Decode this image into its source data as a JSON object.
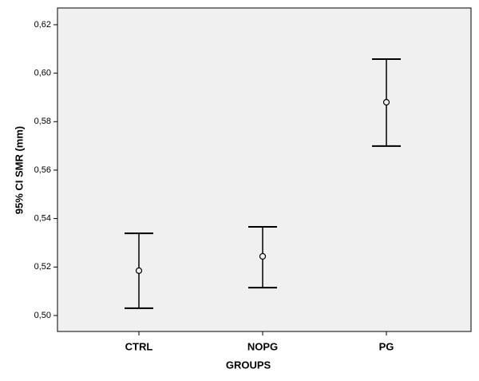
{
  "chart_data": {
    "type": "errorbar",
    "x_label": "GROUPS",
    "y_label": "95% CI SMR (mm)",
    "categories": [
      "CTRL",
      "NOPG",
      "PG"
    ],
    "values": [
      0.5185,
      0.5244,
      0.588
    ],
    "lower": [
      0.503,
      0.5115,
      0.5699
    ],
    "upper": [
      0.5339,
      0.5366,
      0.6058
    ],
    "color": "#000000",
    "ylim": [
      0.4934,
      0.6269
    ],
    "yticks": [
      {
        "value": 0.5,
        "label": "0,50"
      },
      {
        "value": 0.52,
        "label": "0,52"
      },
      {
        "value": 0.54,
        "label": "0,54"
      },
      {
        "value": 0.56,
        "label": "0,56"
      },
      {
        "value": 0.58,
        "label": "0,58"
      },
      {
        "value": 0.6,
        "label": "0,60"
      },
      {
        "value": 0.62,
        "label": "0,62"
      }
    ]
  }
}
